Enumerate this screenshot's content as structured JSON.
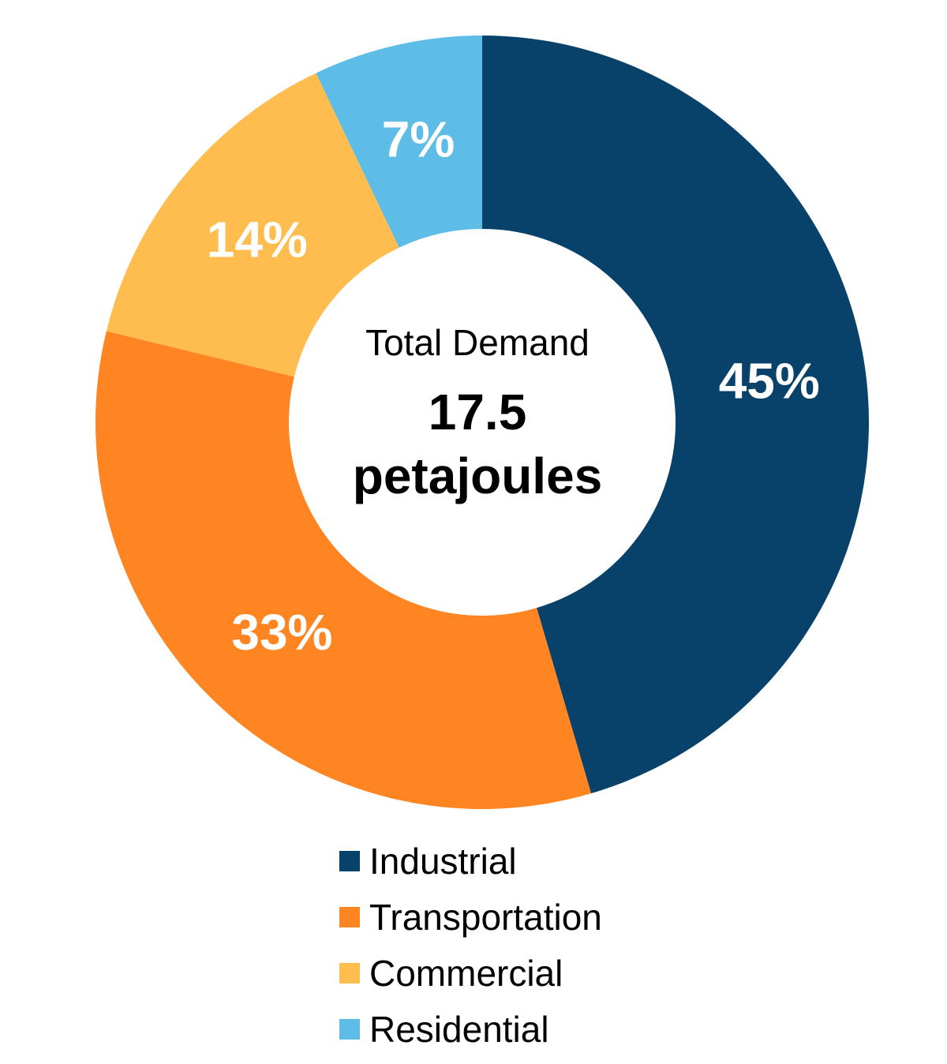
{
  "chart_data": {
    "type": "pie",
    "variant": "donut",
    "categories": [
      "Industrial",
      "Transportation",
      "Commercial",
      "Residential"
    ],
    "values": [
      45,
      33,
      14,
      7
    ],
    "data_labels": [
      "45%",
      "33%",
      "14%",
      "7%"
    ],
    "colors": [
      "#08416A",
      "#FF8522",
      "#FFBD4F",
      "#5DBDE6"
    ],
    "center_label": {
      "line1": "Total Demand",
      "value": "17.5",
      "unit": "petajoules"
    },
    "legend_position": "bottom",
    "start_angle": "top, clockwise"
  }
}
